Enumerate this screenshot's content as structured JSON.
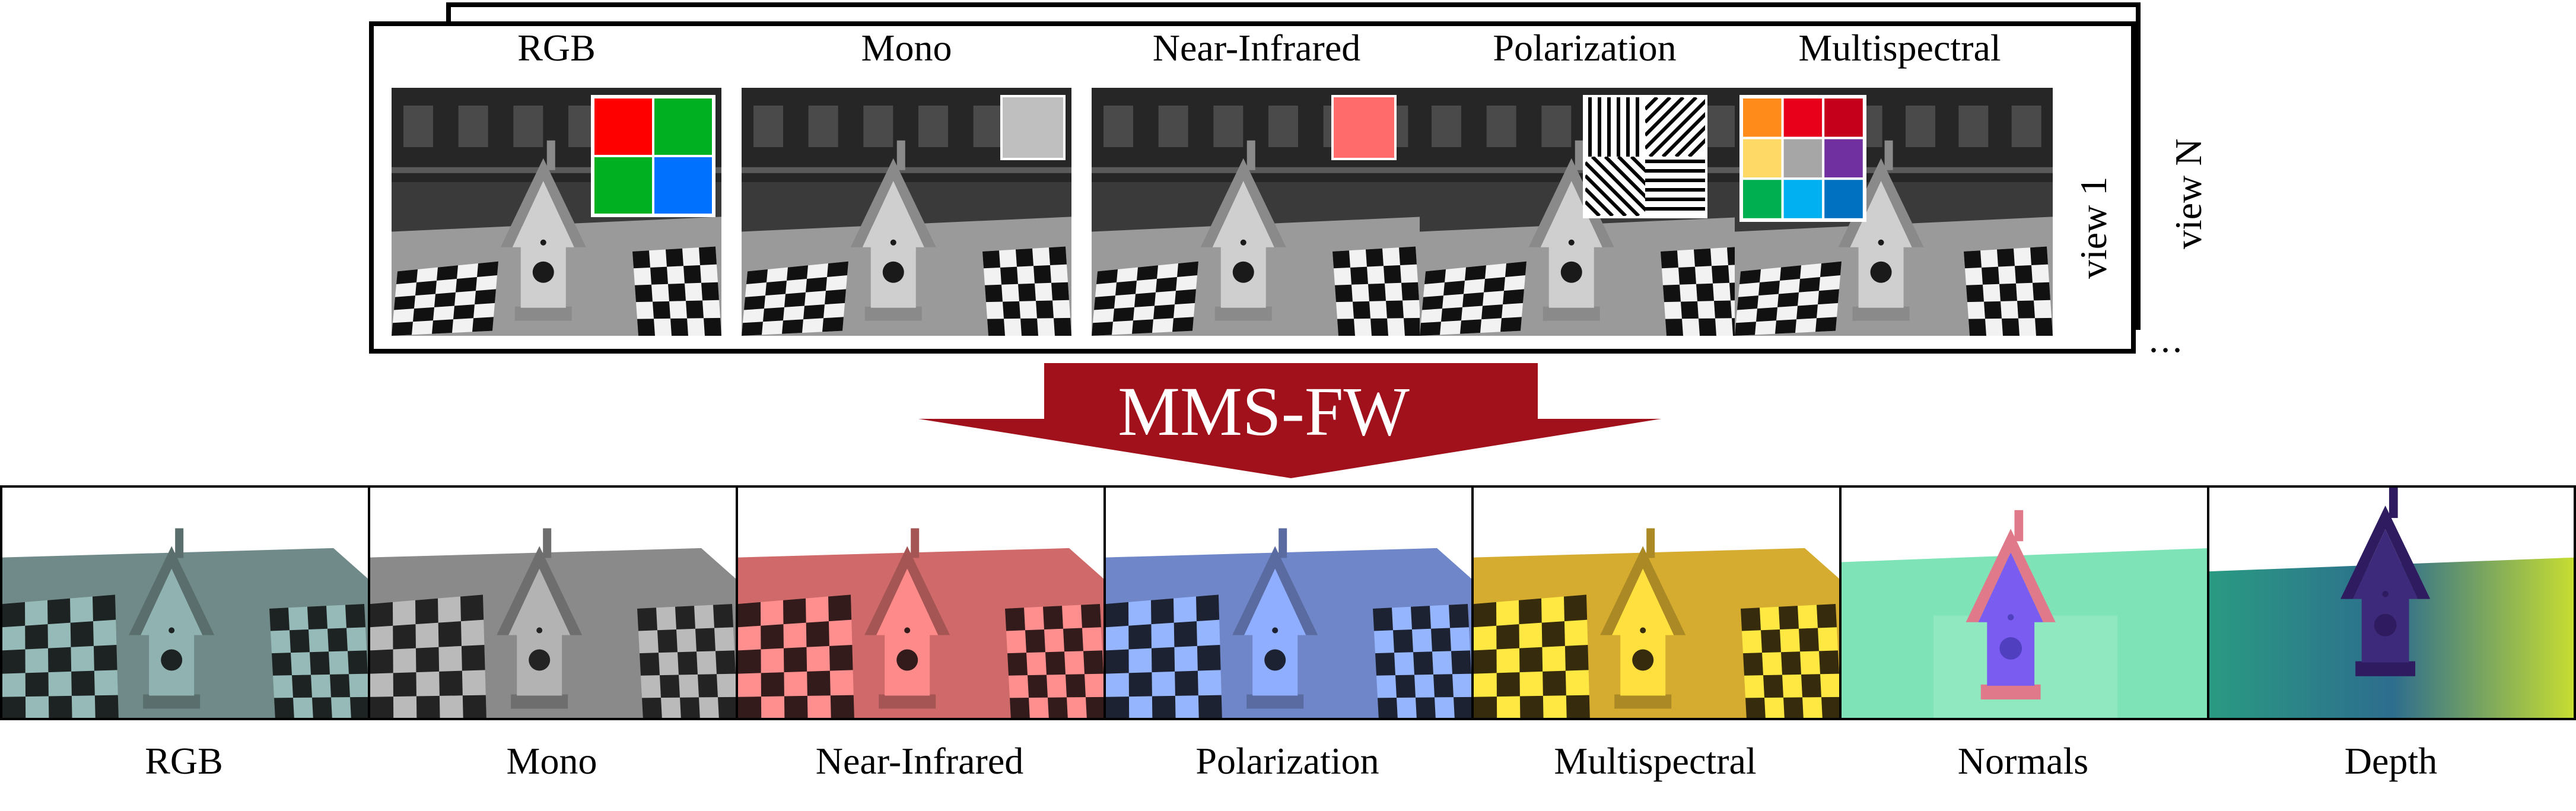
{
  "framework_label": "MMS-FW",
  "views": {
    "first": "view 1",
    "last": "view N",
    "more": "..."
  },
  "inputs": [
    {
      "label": "RGB",
      "filter": "2x2 bayer mosaic"
    },
    {
      "label": "Mono",
      "filter": "single gray"
    },
    {
      "label": "Near-Infrared",
      "filter": "single light red"
    },
    {
      "label": "Polarization",
      "filter": "2x2 line orientations"
    },
    {
      "label": "Multispectral",
      "filter": "3x3 spectral mosaic"
    }
  ],
  "outputs": [
    {
      "label": "RGB"
    },
    {
      "label": "Mono"
    },
    {
      "label": "Near-Infrared"
    },
    {
      "label": "Polarization"
    },
    {
      "label": "Multispectral"
    },
    {
      "label": "Normals"
    },
    {
      "label": "Depth"
    }
  ],
  "colors": {
    "arrow": "#a0111b",
    "bayer": [
      "#ff0000",
      "#00b020",
      "#00b020",
      "#0070ff"
    ],
    "mono_filter": "#bfbfbf",
    "nir_filter": "#ff6b6b",
    "multispectral": [
      "#ff8c1a",
      "#e8001a",
      "#c4001a",
      "#ffd966",
      "#a6a6a6",
      "#7030a0",
      "#00b050",
      "#00b0f0",
      "#0070c0"
    ],
    "output_tints": [
      "#6f8a88",
      "#8a8a8a",
      "#d06a6a",
      "#6f86c8",
      "#d6ac30",
      "#7fe3b8",
      "#2a9a82"
    ]
  }
}
